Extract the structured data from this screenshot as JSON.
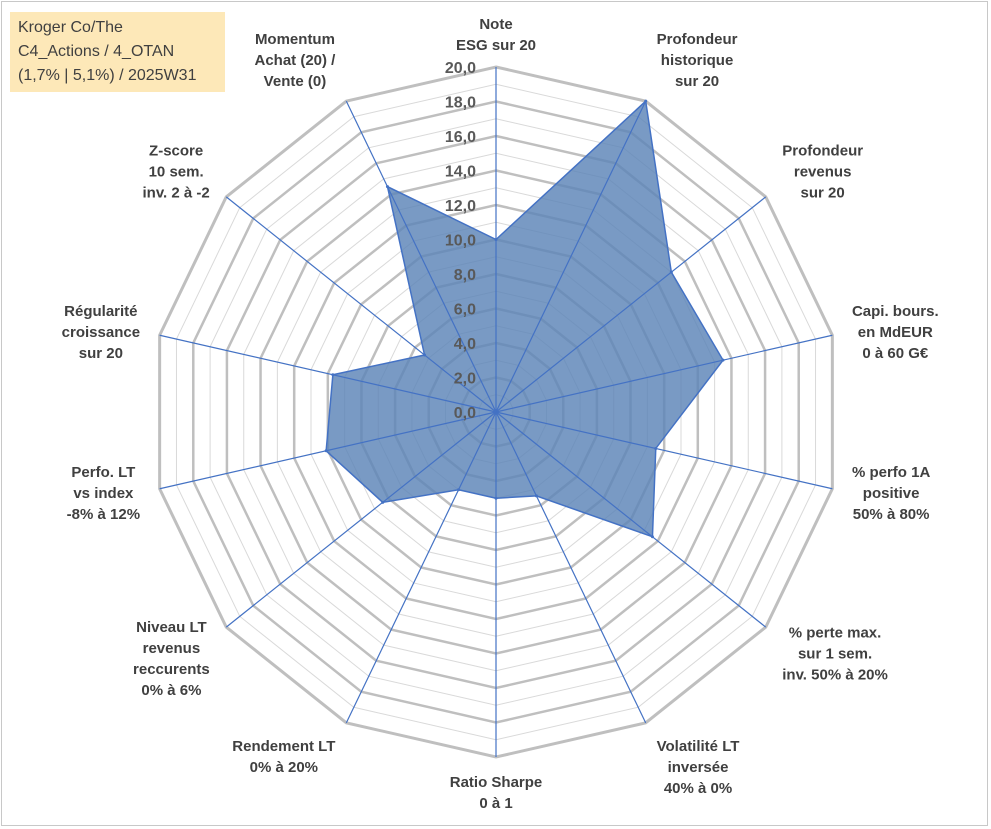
{
  "infobox": {
    "line1": "Kroger Co/The",
    "line2": "C4_Actions / 4_OTAN",
    "line3": "(1,7% | 5,1%) / 2025W31"
  },
  "chart_data": {
    "type": "radar",
    "rlim": [
      0,
      20
    ],
    "ticks": [
      "0,0",
      "2,0",
      "4,0",
      "6,0",
      "8,0",
      "10,0",
      "12,0",
      "14,0",
      "16,0",
      "18,0",
      "20,0"
    ],
    "axes": [
      {
        "label": [
          "Note",
          "ESG sur 20"
        ],
        "value": 10.0
      },
      {
        "label": [
          "Profondeur",
          "historique",
          "sur 20"
        ],
        "value": 20.0
      },
      {
        "label": [
          "Profondeur",
          "revenus",
          "sur 20"
        ],
        "value": 13.0
      },
      {
        "label": [
          "Capi. bours.",
          "en MdEUR",
          "0 à 60 G€"
        ],
        "value": 13.5
      },
      {
        "label": [
          "% perfo 1A",
          "positive",
          "50% à 80%"
        ],
        "value": 9.5
      },
      {
        "label": [
          "% perte max.",
          "sur 1 sem.",
          "inv. 50% à 20%"
        ],
        "value": 11.6
      },
      {
        "label": [
          "Volatilité LT",
          "inversée",
          "40% à 0%"
        ],
        "value": 5.4
      },
      {
        "label": [
          "Ratio Sharpe",
          "0 à 1"
        ],
        "value": 5.0
      },
      {
        "label": [
          "Rendement LT",
          "0% à 20%"
        ],
        "value": 5.0
      },
      {
        "label": [
          "Niveau LT",
          "revenus",
          "reccurents",
          "0% à 6%"
        ],
        "value": 8.4
      },
      {
        "label": [
          "Perfo. LT",
          "vs index",
          "-8% à 12%"
        ],
        "value": 10.1
      },
      {
        "label": [
          "Régularité",
          "croissance",
          "sur 20"
        ],
        "value": 9.7
      },
      {
        "label": [
          "Z-score",
          "10 sem.",
          "inv. 2 à -2"
        ],
        "value": 5.3
      },
      {
        "label": [
          "Momentum",
          "Achat (20) /",
          "Vente (0)"
        ],
        "value": 14.5
      }
    ],
    "grid": true,
    "legend": "none",
    "colors": {
      "fill": "#5b84b7",
      "fill_opacity": 0.82,
      "stroke": "#4472c4",
      "spoke": "#4472c4",
      "ring_major": "#bfbfbf",
      "ring_minor": "#d9d9d9"
    }
  }
}
